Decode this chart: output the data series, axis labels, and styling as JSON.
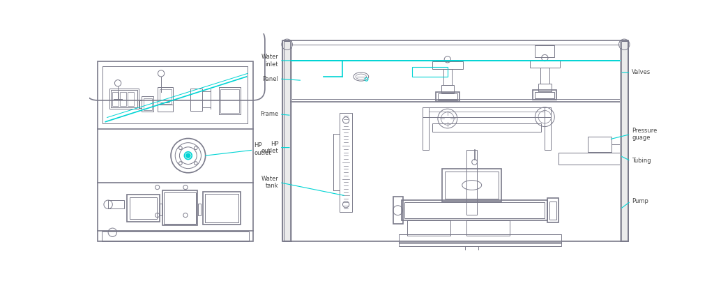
{
  "bg_color": "#ffffff",
  "lc": "#7a7a8a",
  "cc": "#00d4d4",
  "lw1": 0.7,
  "lw2": 1.2,
  "lw3": 1.8,
  "ann_lw": 0.8,
  "label_fs": 6.0,
  "label_color": "#444444",
  "labels": {
    "water_inlet": "Water\ninlet",
    "panel": "Panel",
    "frame": "Frame",
    "hp_outlet": "HP\noutlet",
    "water_tank": "Water\ntank",
    "valves": "Valves",
    "pressure_gauge": "Pressure\nguage",
    "tubing": "Tubing",
    "pump": "Pump"
  }
}
